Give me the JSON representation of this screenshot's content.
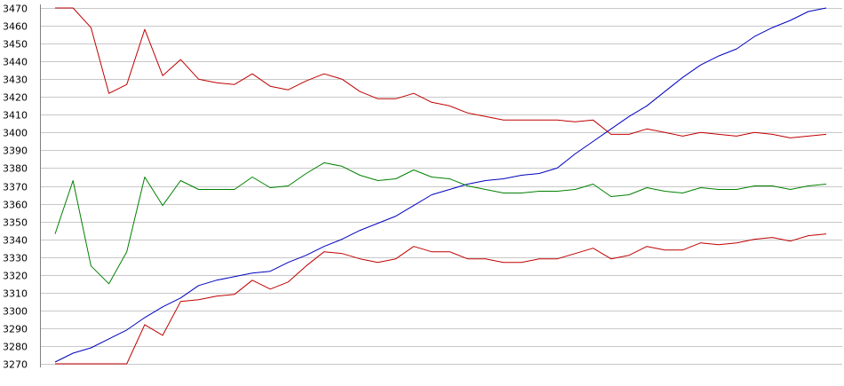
{
  "chart_data": {
    "type": "line",
    "title": "",
    "xlabel": "",
    "ylabel": "",
    "ylim": [
      3270,
      3470
    ],
    "yticks": [
      3470,
      3460,
      3450,
      3440,
      3430,
      3420,
      3410,
      3400,
      3390,
      3380,
      3370,
      3360,
      3350,
      3340,
      3330,
      3320,
      3310,
      3300,
      3290,
      3280,
      3270
    ],
    "grid": true,
    "legend": "none",
    "series": [
      {
        "color": "#0000c0",
        "values": [
          3271,
          3276,
          3279,
          3284,
          3289,
          3296,
          3302,
          3307,
          3314,
          3317,
          3319,
          3321,
          3322,
          3327,
          3331,
          3336,
          3340,
          3345,
          3349,
          3353,
          3359,
          3365,
          3368,
          3371,
          3373,
          3374,
          3376,
          3377,
          3380,
          3388,
          3395,
          3402,
          3409,
          3415,
          3423,
          3431,
          3438,
          3443,
          3447,
          3454,
          3459,
          3463,
          3468,
          3470
        ]
      },
      {
        "color": "#c00000",
        "values": [
          3470,
          3470,
          3459,
          3422,
          3427,
          3458,
          3432,
          3441,
          3430,
          3428,
          3427,
          3433,
          3426,
          3424,
          3429,
          3433,
          3430,
          3423,
          3419,
          3419,
          3422,
          3417,
          3415,
          3411,
          3409,
          3407,
          3407,
          3407,
          3407,
          3406,
          3407,
          3399,
          3399,
          3402,
          3400,
          3398,
          3400,
          3399,
          3398,
          3400,
          3399,
          3397,
          3398,
          3399
        ]
      },
      {
        "color": "#008000",
        "values": [
          3343,
          3373,
          3325,
          3315,
          3333,
          3375,
          3359,
          3373,
          3368,
          3368,
          3368,
          3375,
          3369,
          3370,
          3377,
          3383,
          3381,
          3376,
          3373,
          3374,
          3379,
          3375,
          3374,
          3370,
          3368,
          3366,
          3366,
          3367,
          3367,
          3368,
          3371,
          3364,
          3365,
          3369,
          3367,
          3366,
          3369,
          3368,
          3368,
          3370,
          3370,
          3368,
          3370,
          3371
        ]
      },
      {
        "color": "#c00000",
        "values": [
          3270,
          3270,
          3270,
          3270,
          3270,
          3292,
          3286,
          3305,
          3306,
          3308,
          3309,
          3317,
          3312,
          3316,
          3325,
          3333,
          3332,
          3329,
          3327,
          3329,
          3336,
          3333,
          3333,
          3329,
          3329,
          3327,
          3327,
          3329,
          3329,
          3332,
          3335,
          3329,
          3331,
          3336,
          3334,
          3334,
          3338,
          3337,
          3338,
          3340,
          3341,
          3339,
          3342,
          3343
        ]
      }
    ]
  }
}
